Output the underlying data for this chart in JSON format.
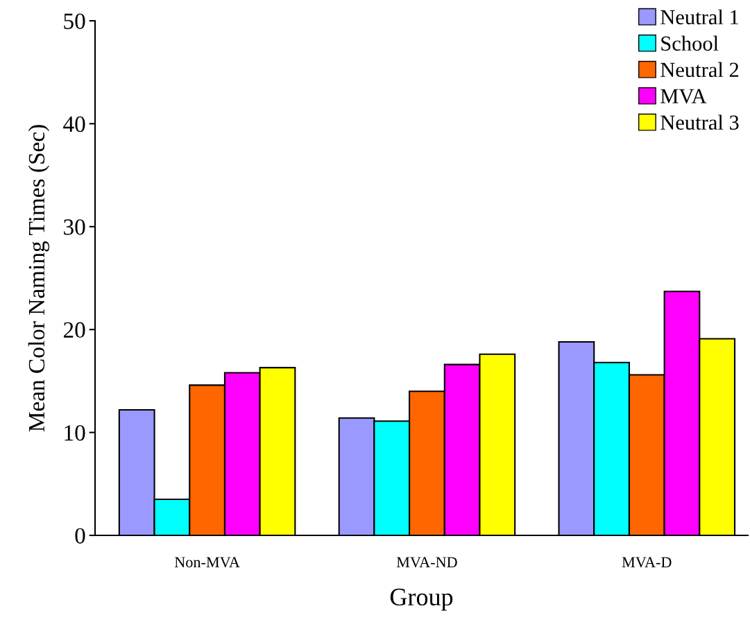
{
  "chart_data": {
    "type": "bar",
    "xlabel": "Group",
    "ylabel": "Mean Color Naming Times (Sec)",
    "categories": [
      "Non-MVA",
      "MVA-ND",
      "MVA-D"
    ],
    "series": [
      {
        "name": "Neutral 1",
        "color": "#9999ff",
        "values": [
          12.2,
          11.4,
          18.8
        ]
      },
      {
        "name": "School",
        "color": "#00ffff",
        "values": [
          3.5,
          11.1,
          16.8
        ]
      },
      {
        "name": "Neutral 2",
        "color": "#ff6600",
        "values": [
          14.6,
          14.0,
          15.6
        ]
      },
      {
        "name": "MVA",
        "color": "#ff00ff",
        "values": [
          15.8,
          16.6,
          23.7
        ]
      },
      {
        "name": "Neutral 3",
        "color": "#ffff00",
        "values": [
          16.3,
          17.6,
          19.1
        ]
      }
    ],
    "ylim": [
      0,
      50
    ],
    "yticks": [
      0,
      10,
      20,
      30,
      40,
      50
    ],
    "grid": false,
    "legend": "top right"
  }
}
